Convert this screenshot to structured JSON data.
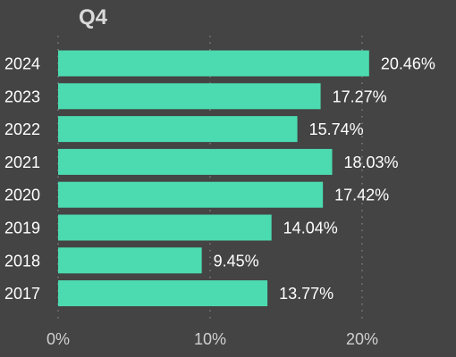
{
  "chart_data": {
    "type": "bar",
    "orientation": "horizontal",
    "title": "Q4",
    "xlabel": "",
    "ylabel": "",
    "categories": [
      "2024",
      "2023",
      "2022",
      "2021",
      "2020",
      "2019",
      "2018",
      "2017"
    ],
    "values": [
      20.46,
      17.27,
      15.74,
      18.03,
      17.42,
      14.04,
      9.45,
      13.77
    ],
    "value_labels": [
      "20.46%",
      "17.27%",
      "15.74%",
      "18.03%",
      "17.42%",
      "14.04%",
      "9.45%",
      "13.77%"
    ],
    "xlim": [
      0,
      20
    ],
    "x_ticks": [
      0,
      10,
      20
    ],
    "x_tick_labels": [
      "0%",
      "10%",
      "20%"
    ],
    "grid": "vertical-dotted",
    "legend": "none",
    "colors": {
      "background": "#444444",
      "bar": "#4cdbb0",
      "text": "#ffffff",
      "tick_text": "#d0d0d0",
      "title": "#d9d9d9",
      "grid": "#8a8a8a"
    }
  }
}
